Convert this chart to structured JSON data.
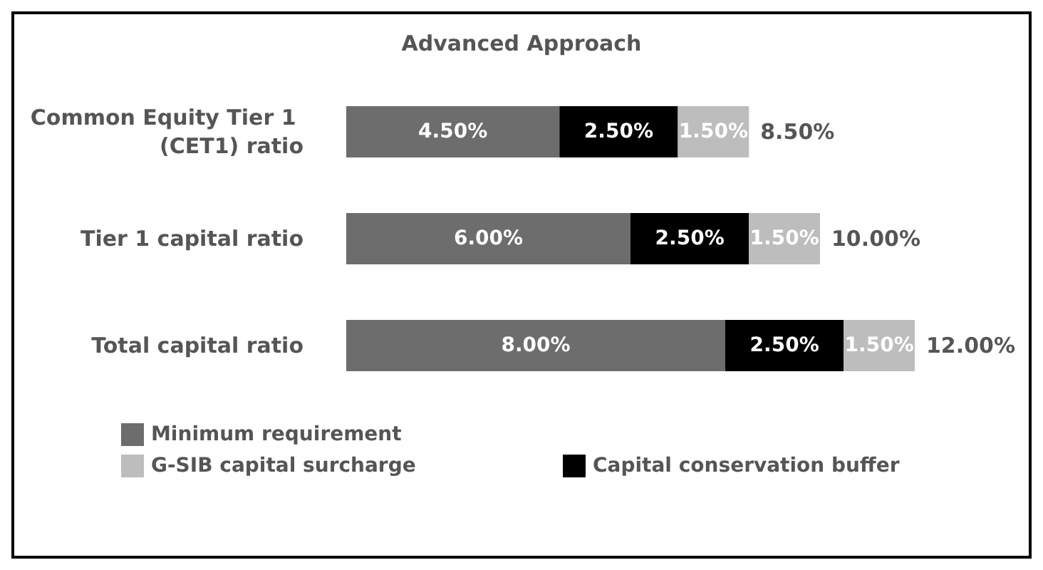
{
  "chart_data": {
    "type": "bar",
    "orientation": "horizontal",
    "stacked": true,
    "title": "Advanced Approach",
    "categories": [
      "Common Equity Tier 1 (CET1) ratio",
      "Tier 1 capital ratio",
      "Total capital ratio"
    ],
    "series": [
      {
        "name": "Minimum requirement",
        "color": "#6d6d6d",
        "values": [
          4.5,
          6,
          8
        ],
        "value_labels": [
          "4.50%",
          "6.00%",
          "8.00%"
        ]
      },
      {
        "name": "Capital conservation buffer",
        "color": "#000000",
        "values": [
          2.5,
          2.5,
          2.5
        ],
        "value_labels": [
          "2.50%",
          "2.50%",
          "2.50%"
        ]
      },
      {
        "name": "G-SIB capital surcharge",
        "color": "#bdbdbd",
        "values": [
          1.5,
          1.5,
          1.5
        ],
        "value_labels": [
          "1.50%",
          "1.50%",
          "1.50%"
        ]
      }
    ],
    "totals": [
      "8.50%",
      "10.00%",
      "12.00%"
    ],
    "legend": "bottom"
  }
}
